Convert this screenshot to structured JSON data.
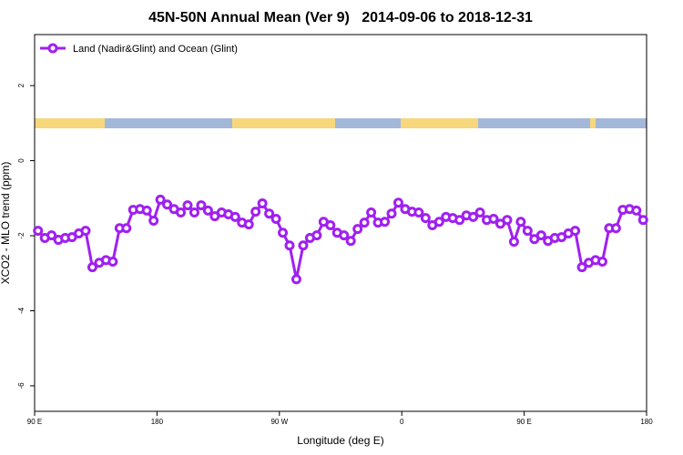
{
  "chart_data": {
    "type": "line",
    "title": "45N-50N Annual Mean (Ver 9)   2014-09-06 to 2018-12-31",
    "x_label": "Longitude (deg E)",
    "y_label": "XCO2 - MLO trend (ppm)",
    "x": [
      92.5,
      97.5,
      102.5,
      107.5,
      112.5,
      117.5,
      122.5,
      127.5,
      132.5,
      137.5,
      142.5,
      147.5,
      152.5,
      157.5,
      162.5,
      167.5,
      172.5,
      177.5,
      182.5,
      187.5,
      192.5,
      197.5,
      202.5,
      207.5,
      212.5,
      217.5,
      222.5,
      227.5,
      232.5,
      237.5,
      242.5,
      247.5,
      252.5,
      257.5,
      262.5,
      267.5,
      272.5,
      277.5,
      282.5,
      287.5,
      292.5,
      297.5,
      302.5,
      307.5,
      312.5,
      317.5,
      322.5,
      327.5,
      332.5,
      337.5,
      342.5,
      347.5,
      352.5,
      357.5,
      362.5,
      367.5,
      372.5,
      377.5,
      382.5,
      387.5,
      392.5,
      397.5,
      402.5,
      407.5,
      412.5,
      417.5,
      422.5,
      427.5,
      432.5,
      437.5,
      442.5,
      447.5,
      452.5,
      457.5,
      462.5,
      467.5,
      472.5,
      477.5,
      482.5,
      487.5,
      492.5,
      497.5,
      502.5,
      507.5,
      512.5,
      517.5,
      522.5,
      527.5,
      532.5,
      537.5
    ],
    "series": [
      {
        "name": "Land (Nadir&Glint) and Ocean (Glint)",
        "color": "#a020f0",
        "values": [
          -1.87,
          -2.06,
          -1.99,
          -2.11,
          -2.06,
          -2.04,
          -1.94,
          -1.87,
          -2.84,
          -2.72,
          -2.65,
          -2.69,
          -1.8,
          -1.8,
          -1.31,
          -1.29,
          -1.33,
          -1.6,
          -1.04,
          -1.17,
          -1.29,
          -1.38,
          -1.19,
          -1.38,
          -1.19,
          -1.33,
          -1.48,
          -1.38,
          -1.43,
          -1.5,
          -1.65,
          -1.7,
          -1.36,
          -1.14,
          -1.41,
          -1.55,
          -1.92,
          -2.26,
          -3.16,
          -2.26,
          -2.06,
          -1.99,
          -1.63,
          -1.72,
          -1.92,
          -1.99,
          -2.14,
          -1.82,
          -1.65,
          -1.38,
          -1.65,
          -1.63,
          -1.41,
          -1.12,
          -1.29,
          -1.36,
          -1.38,
          -1.53,
          -1.72,
          -1.63,
          -1.5,
          -1.53,
          -1.58,
          -1.46,
          -1.5,
          -1.38,
          -1.58,
          -1.55,
          -1.68,
          -1.58,
          -2.16,
          -1.63,
          -1.87,
          -2.09,
          -1.99,
          -2.14,
          -2.06,
          -2.04,
          -1.94,
          -1.87,
          -2.84,
          -2.72,
          -2.65,
          -2.69,
          -1.8,
          -1.8,
          -1.31,
          -1.29,
          -1.33,
          -1.58
        ]
      }
    ],
    "xlim": [
      90,
      540
    ],
    "xticks": [
      {
        "value": 90,
        "label": "90 E"
      },
      180,
      {
        "value": 270,
        "label": "90 W"
      },
      {
        "value": 360,
        "label": "0"
      },
      {
        "value": 450,
        "label": "90 E"
      },
      {
        "value": 540,
        "label": "180"
      }
    ],
    "ylim": [
      -6.68,
      3.36
    ],
    "yticks": [
      2,
      0,
      -2,
      -4,
      -6
    ],
    "legend": "top-left"
  }
}
